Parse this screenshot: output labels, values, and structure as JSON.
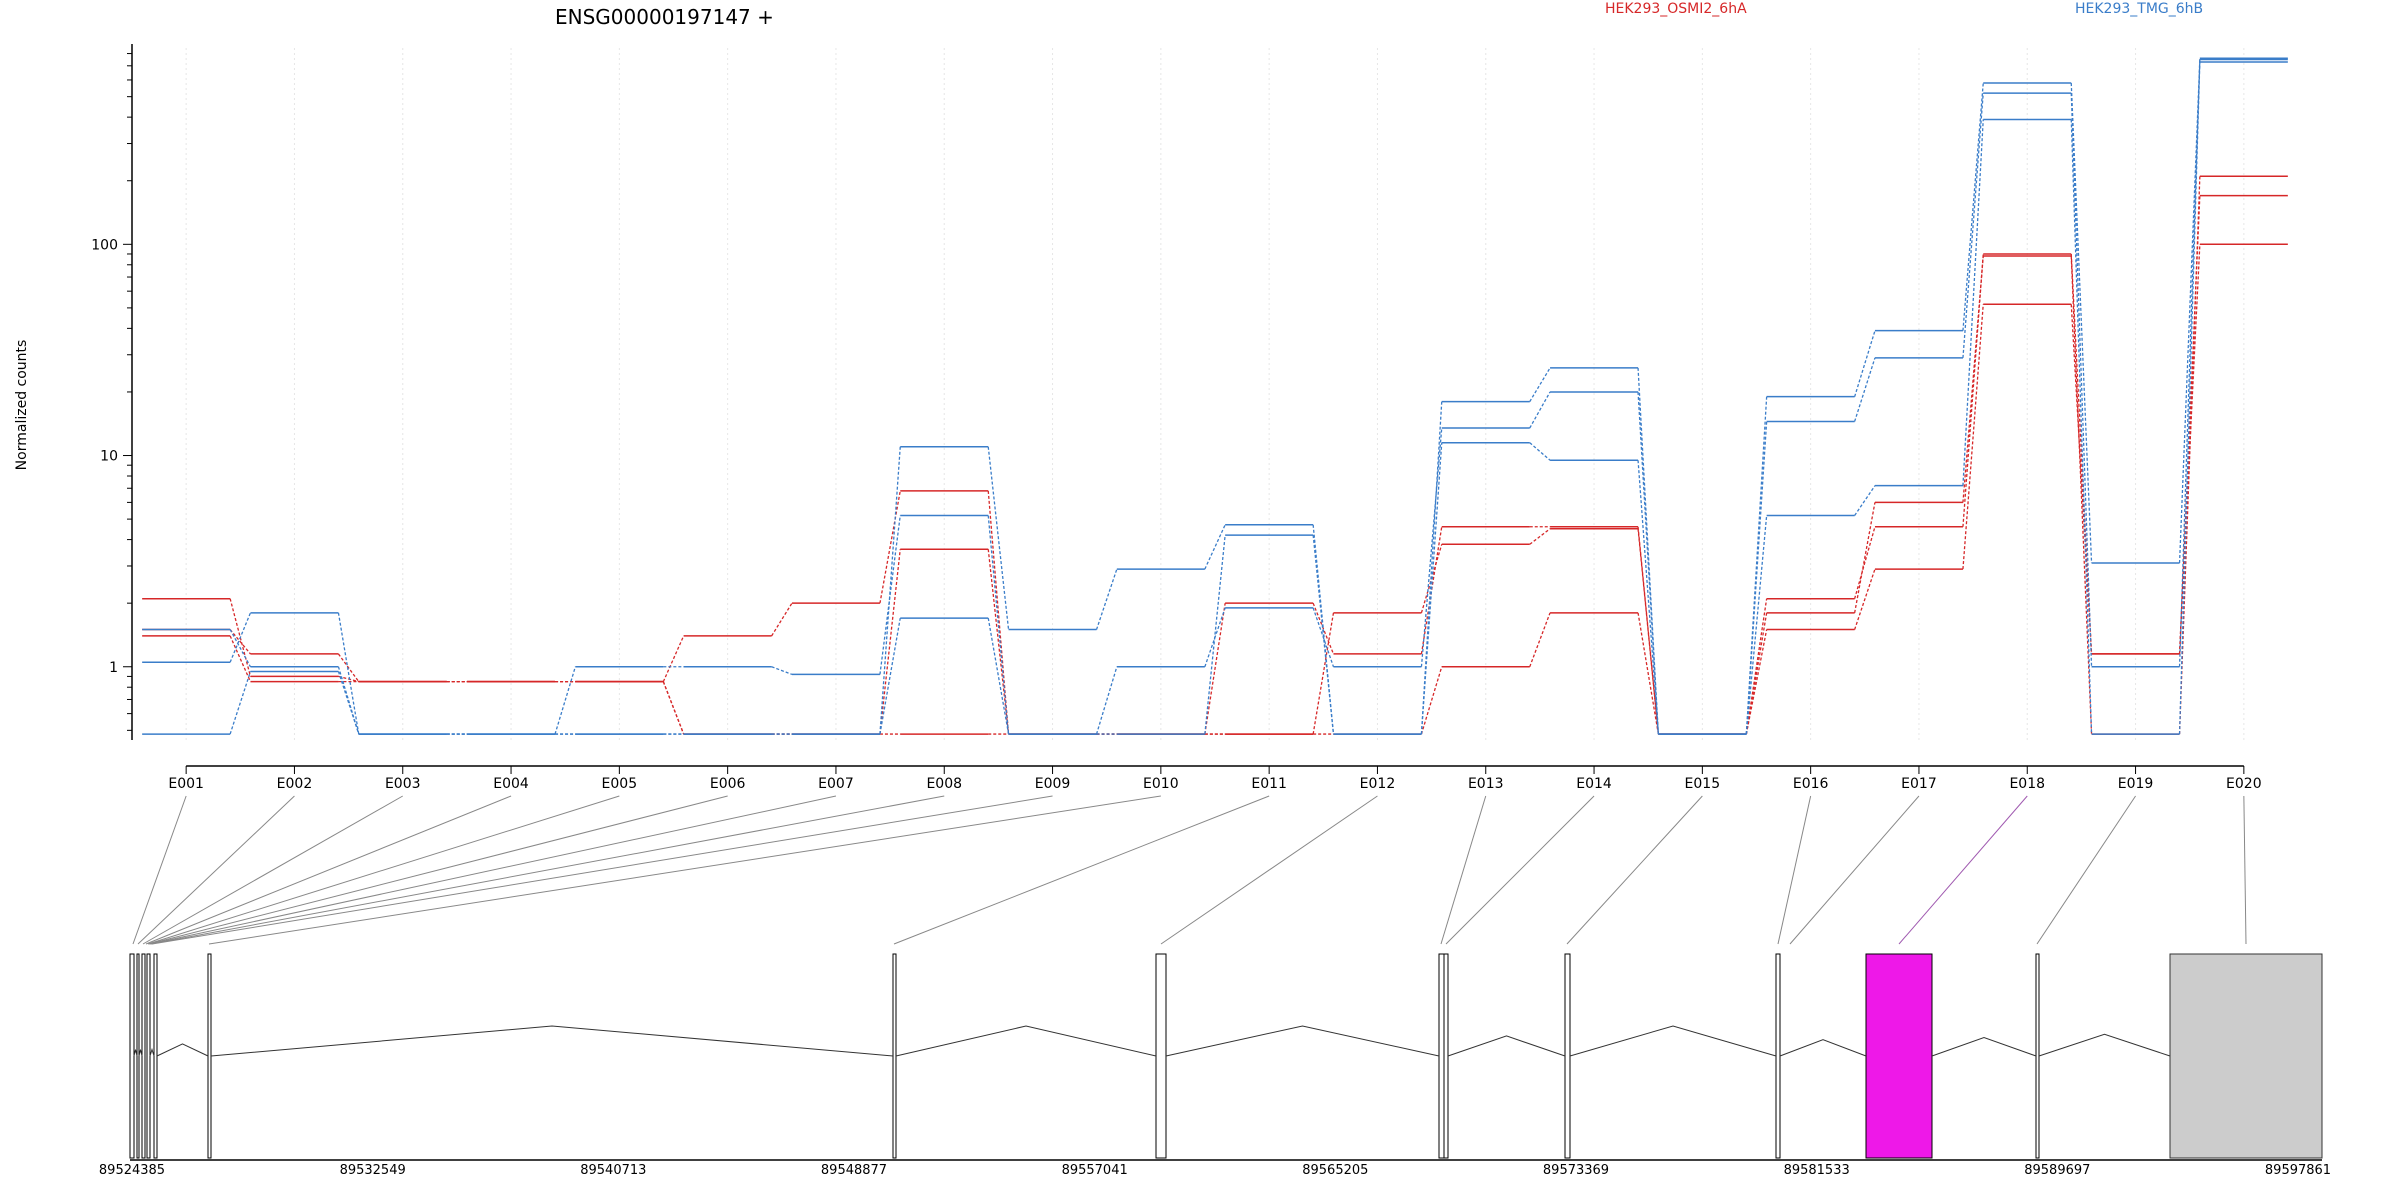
{
  "title": "ENSG00000197147 +",
  "legend": [
    {
      "name": "HEK293_OSMI2_6hA",
      "color": "#d62728"
    },
    {
      "name": "HEK293_TMG_6hB",
      "color": "#3a7dc9"
    }
  ],
  "highlight_color": "#ee18e8",
  "gray_exon_color": "#cccccc",
  "chart_data": {
    "type": "line",
    "scale": "log10",
    "ylabel": "Normalized counts",
    "ylim": [
      0.45,
      850
    ],
    "yticks": [
      1,
      10,
      100
    ],
    "ytick_labels": [
      "1",
      "10",
      "100"
    ],
    "grid": "vertical dotted",
    "legend_position": "top-right",
    "categories": [
      "E001",
      "E002",
      "E003",
      "E004",
      "E005",
      "E006",
      "E007",
      "E008",
      "E009",
      "E010",
      "E011",
      "E012",
      "E013",
      "E014",
      "E015",
      "E016",
      "E017",
      "E018",
      "E019",
      "E020"
    ],
    "series": [
      {
        "name": "HEK293_OSMI2_6hA",
        "values": [
          2.1,
          0.9,
          0.85,
          0.85,
          0.85,
          0.48,
          0.48,
          3.6,
          0.48,
          0.48,
          0.48,
          1.8,
          3.8,
          4.5,
          0.48,
          1.5,
          2.9,
          52,
          1.15,
          100
        ]
      },
      {
        "name": "HEK293_OSMI2_6hA",
        "values": [
          1.5,
          1.15,
          0.85,
          0.85,
          0.85,
          1.4,
          2.0,
          6.8,
          0.48,
          0.48,
          2.0,
          1.15,
          4.6,
          4.6,
          0.48,
          2.1,
          4.6,
          90,
          1.15,
          170
        ]
      },
      {
        "name": "HEK293_OSMI2_6hA",
        "values": [
          1.4,
          0.85,
          0.85,
          0.85,
          0.85,
          0.48,
          0.48,
          0.48,
          0.48,
          0.48,
          0.48,
          0.48,
          1.0,
          1.8,
          0.48,
          1.8,
          6.0,
          88,
          0.48,
          210
        ]
      },
      {
        "name": "HEK293_TMG_6hB",
        "values": [
          1.05,
          1.8,
          0.48,
          0.48,
          0.48,
          0.48,
          0.48,
          11,
          1.5,
          2.9,
          4.7,
          0.48,
          18,
          26,
          0.48,
          19,
          39,
          580,
          3.1,
          750
        ]
      },
      {
        "name": "HEK293_TMG_6hB",
        "values": [
          1.5,
          1.0,
          0.48,
          0.48,
          0.48,
          0.48,
          0.48,
          1.7,
          0.48,
          0.48,
          4.2,
          0.48,
          11.5,
          9.5,
          0.48,
          5.2,
          7.2,
          390,
          0.48,
          730
        ]
      },
      {
        "name": "HEK293_TMG_6hB",
        "values": [
          0.48,
          0.95,
          0.48,
          0.48,
          1.0,
          1.0,
          0.92,
          5.2,
          0.48,
          1.0,
          1.9,
          1.0,
          13.5,
          20,
          0.48,
          14.5,
          29,
          520,
          1.0,
          760
        ]
      }
    ]
  },
  "gene_model": {
    "coordinate_labels": [
      "89524385",
      "89532549",
      "89540713",
      "89548877",
      "89557041",
      "89565205",
      "89573369",
      "89581533",
      "89589697",
      "89597861"
    ],
    "exon_map": [
      {
        "label": "E001",
        "kind": "line"
      },
      {
        "label": "E002",
        "kind": "line"
      },
      {
        "label": "E003",
        "kind": "line"
      },
      {
        "label": "E004",
        "kind": "line"
      },
      {
        "label": "E005",
        "kind": "line"
      },
      {
        "label": "E006",
        "kind": "line"
      },
      {
        "label": "E007",
        "kind": "line"
      },
      {
        "label": "E008",
        "kind": "line"
      },
      {
        "label": "E009",
        "kind": "line"
      },
      {
        "label": "E010",
        "kind": "line"
      },
      {
        "label": "E011",
        "kind": "line"
      },
      {
        "label": "E012",
        "kind": "line"
      },
      {
        "label": "E013",
        "kind": "line"
      },
      {
        "label": "E014",
        "kind": "line"
      },
      {
        "label": "E015",
        "kind": "line"
      },
      {
        "label": "E016",
        "kind": "line"
      },
      {
        "label": "E017",
        "kind": "line"
      },
      {
        "label": "E018",
        "kind": "highlight"
      },
      {
        "label": "E019",
        "kind": "line"
      },
      {
        "label": "E020",
        "kind": "gray"
      }
    ]
  }
}
